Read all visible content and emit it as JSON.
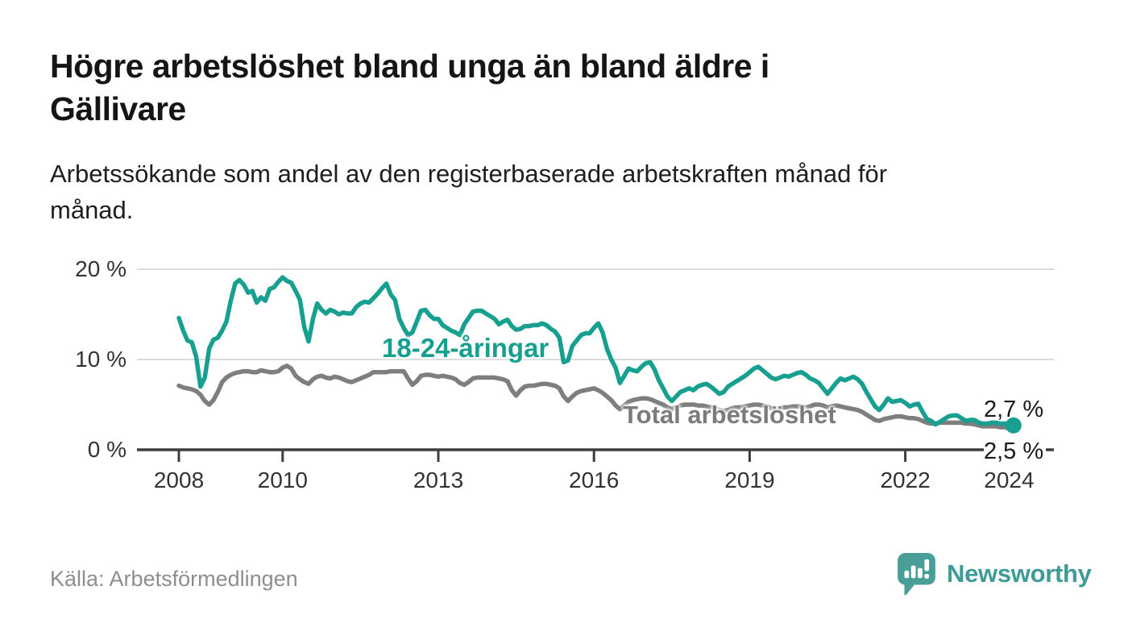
{
  "header": {
    "title": "Högre arbetslöshet bland unga än bland äldre i\nGällivare",
    "subtitle": "Arbetssökande som andel av den registerbaserade arbetskraften månad för\nmånad."
  },
  "footer": {
    "source": "Källa: Arbetsförmedlingen",
    "brand": "Newsworthy",
    "brand_icon": "newsworthy-speech-bubble-bar-chart-icon"
  },
  "colors": {
    "young_series": "#17a08f",
    "total_series": "#7e7e7e",
    "gridline": "#dbdbdb",
    "axis": "#3d3d3d",
    "title_text": "#151515",
    "axis_text": "#333333",
    "source_text": "#8e8e8e",
    "brand_teal": "#3f9b95"
  },
  "chart_data": {
    "type": "line",
    "title": "Högre arbetslöshet bland unga än bland äldre i Gällivare",
    "subtitle": "Arbetssökande som andel av den registerbaserade arbetskraften månad för månad.",
    "x_unit": "month",
    "x_start": "2008-01",
    "x_end": "2024-02",
    "x_tick_years": [
      2008,
      2010,
      2013,
      2016,
      2019,
      2022,
      2024
    ],
    "x_tick_labels": [
      "2008",
      "2010",
      "2013",
      "2016",
      "2019",
      "2022",
      "2024"
    ],
    "y_ticks": [
      20,
      10,
      0
    ],
    "y_tick_labels": [
      "20 %",
      "10 %",
      "0 %"
    ],
    "ylim": [
      0,
      21
    ],
    "grid": "horizontal",
    "legend": "inline-labels",
    "series": [
      {
        "name": "18-24-åringar",
        "color": "#17a08f",
        "end_label": "2,7 %",
        "end_value": 2.7,
        "end_dot": true,
        "values": [
          14.6,
          13.2,
          12.1,
          11.9,
          10.3,
          7.0,
          8.0,
          11.2,
          12.2,
          12.4,
          13.2,
          14.2,
          16.5,
          18.4,
          18.8,
          18.3,
          17.4,
          17.6,
          16.3,
          16.9,
          16.5,
          17.8,
          18.0,
          18.6,
          19.1,
          18.7,
          18.5,
          17.6,
          16.6,
          13.6,
          12.0,
          14.5,
          16.2,
          15.5,
          15.1,
          15.5,
          15.3,
          15.0,
          15.2,
          15.1,
          15.1,
          15.8,
          16.2,
          16.4,
          16.3,
          16.8,
          17.3,
          17.9,
          18.4,
          17.2,
          16.6,
          14.5,
          13.5,
          12.7,
          13.0,
          14.2,
          15.4,
          15.5,
          14.9,
          14.5,
          14.5,
          13.8,
          13.5,
          13.2,
          13.0,
          12.7,
          13.9,
          14.6,
          15.3,
          15.4,
          15.4,
          15.1,
          14.8,
          14.5,
          13.9,
          14.2,
          14.4,
          13.7,
          13.3,
          13.4,
          13.7,
          13.7,
          13.8,
          13.8,
          14.0,
          13.8,
          13.4,
          13.1,
          12.4,
          9.7,
          9.9,
          11.5,
          12.1,
          12.7,
          12.9,
          12.9,
          13.5,
          14.0,
          13.0,
          11.2,
          10.0,
          9.1,
          7.4,
          8.2,
          9.0,
          8.8,
          8.7,
          9.2,
          9.6,
          9.7,
          8.9,
          7.7,
          6.8,
          5.9,
          5.4,
          5.9,
          6.4,
          6.6,
          6.8,
          6.6,
          7.0,
          7.2,
          7.3,
          7.0,
          6.6,
          6.2,
          6.4,
          7.0,
          7.3,
          7.6,
          7.9,
          8.2,
          8.6,
          9.0,
          9.2,
          8.8,
          8.4,
          8.0,
          7.8,
          8.0,
          8.2,
          8.1,
          8.3,
          8.5,
          8.6,
          8.3,
          7.9,
          7.7,
          7.4,
          6.8,
          6.2,
          6.8,
          7.4,
          7.9,
          7.7,
          7.9,
          8.1,
          7.8,
          7.3,
          6.4,
          5.6,
          4.8,
          4.4,
          5.0,
          5.7,
          5.3,
          5.4,
          5.5,
          5.2,
          4.8,
          5.0,
          5.1,
          4.2,
          3.4,
          3.2,
          2.8,
          3.1,
          3.4,
          3.7,
          3.8,
          3.8,
          3.5,
          3.2,
          3.3,
          3.3,
          3.0,
          2.9,
          2.9,
          3.0,
          3.0,
          2.9,
          2.9,
          2.8,
          2.7
        ]
      },
      {
        "name": "Total arbetslöshet",
        "color": "#7e7e7e",
        "end_label": "2,5 %",
        "end_value": 2.5,
        "end_dot": false,
        "values": [
          7.1,
          6.9,
          6.8,
          6.7,
          6.5,
          6.1,
          5.4,
          5.0,
          5.5,
          6.4,
          7.5,
          8.0,
          8.3,
          8.5,
          8.6,
          8.7,
          8.7,
          8.6,
          8.6,
          8.8,
          8.7,
          8.6,
          8.6,
          8.7,
          9.1,
          9.3,
          9.0,
          8.2,
          7.8,
          7.5,
          7.3,
          7.8,
          8.1,
          8.2,
          8.0,
          7.9,
          8.1,
          8.0,
          7.8,
          7.6,
          7.5,
          7.7,
          7.9,
          8.1,
          8.3,
          8.6,
          8.6,
          8.6,
          8.6,
          8.7,
          8.7,
          8.7,
          8.7,
          7.9,
          7.2,
          7.6,
          8.2,
          8.3,
          8.3,
          8.2,
          8.1,
          8.2,
          8.1,
          8.0,
          7.8,
          7.4,
          7.2,
          7.5,
          7.9,
          8.0,
          8.0,
          8.0,
          8.0,
          8.0,
          7.9,
          7.8,
          7.6,
          6.6,
          6.0,
          6.6,
          7.0,
          7.1,
          7.1,
          7.2,
          7.3,
          7.3,
          7.2,
          7.1,
          6.8,
          5.9,
          5.4,
          5.9,
          6.3,
          6.5,
          6.6,
          6.7,
          6.8,
          6.6,
          6.3,
          5.9,
          5.5,
          4.9,
          4.5,
          4.9,
          5.3,
          5.5,
          5.6,
          5.7,
          5.7,
          5.6,
          5.4,
          5.2,
          5.0,
          4.7,
          4.5,
          4.7,
          4.9,
          5.0,
          5.0,
          5.0,
          4.9,
          4.9,
          4.8,
          4.7,
          4.6,
          4.4,
          4.3,
          4.4,
          4.6,
          4.7,
          4.7,
          4.8,
          4.9,
          5.0,
          5.0,
          4.9,
          4.8,
          4.6,
          4.5,
          4.6,
          4.7,
          4.7,
          4.8,
          4.8,
          4.8,
          4.7,
          4.8,
          5.0,
          5.0,
          4.9,
          4.7,
          4.8,
          4.9,
          4.8,
          4.7,
          4.6,
          4.5,
          4.4,
          4.2,
          3.9,
          3.6,
          3.3,
          3.2,
          3.4,
          3.5,
          3.6,
          3.7,
          3.7,
          3.6,
          3.5,
          3.5,
          3.4,
          3.2,
          3.0,
          2.9,
          2.9,
          3.0,
          3.0,
          3.0,
          3.0,
          3.0,
          3.0,
          2.9,
          2.9,
          2.8,
          2.7,
          2.6,
          2.6,
          2.6,
          2.6,
          2.5,
          2.5,
          2.4,
          2.5
        ]
      }
    ]
  }
}
